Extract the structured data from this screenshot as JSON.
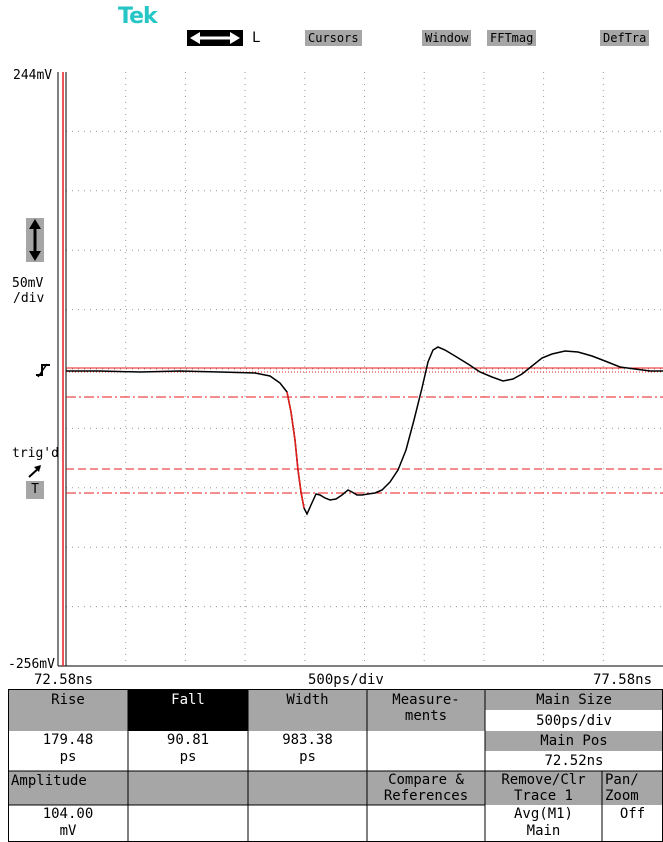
{
  "brand": "Tek",
  "top_menu": {
    "arrow_label": "L",
    "cursors": "Cursors",
    "window": "Window",
    "fftmag": "FFTmag",
    "deftra": "DefTra"
  },
  "screen": {
    "top_voltage": "244mV",
    "bottom_voltage": "-256mV",
    "vscale_line1": "50mV",
    "vscale_line2": "/div",
    "trig_label": "trig'd",
    "trig_marker": "T",
    "time_left": "72.58ns",
    "time_center": "500ps/div",
    "time_right": "77.58ns"
  },
  "measurements": {
    "rise_label": "Rise",
    "rise_value": "179.48",
    "rise_unit": "ps",
    "fall_label": "Fall",
    "fall_value": "90.81",
    "fall_unit": "ps",
    "width_label": "Width",
    "width_value": "983.38",
    "width_unit": "ps",
    "measurements_line1": "Measure-",
    "measurements_line2": "ments",
    "amplitude_label": "Amplitude",
    "amplitude_value": "104.00",
    "amplitude_unit": "mV",
    "compare_line1": "Compare &",
    "compare_line2": "References"
  },
  "right_panel": {
    "main_size_label": "Main Size",
    "main_size_value": "500ps/div",
    "main_pos_label": "Main Pos",
    "main_pos_value": "72.52ns",
    "remove_line1": "Remove/Clr",
    "remove_line2": "Trace 1",
    "trace_line3": "Avg(M1)",
    "trace_line4": "Main",
    "pan_line1": "Pan/",
    "pan_line2": "Zoom",
    "pan_value": "Off"
  },
  "colors": {
    "trace": "#000000",
    "trace_highlight": "#e81b1b",
    "cursor_line": "#e81b1b",
    "menu_gray": "#a6a6a6",
    "brand": "#26c6c6"
  },
  "icons": {
    "horizontal_arrow": "double-arrow-horizontal-icon",
    "vertical_arrow": "double-arrow-vertical-icon",
    "trigger_level": "trigger-level-icon",
    "trigger_arrow": "trigger-arrow-icon"
  }
}
